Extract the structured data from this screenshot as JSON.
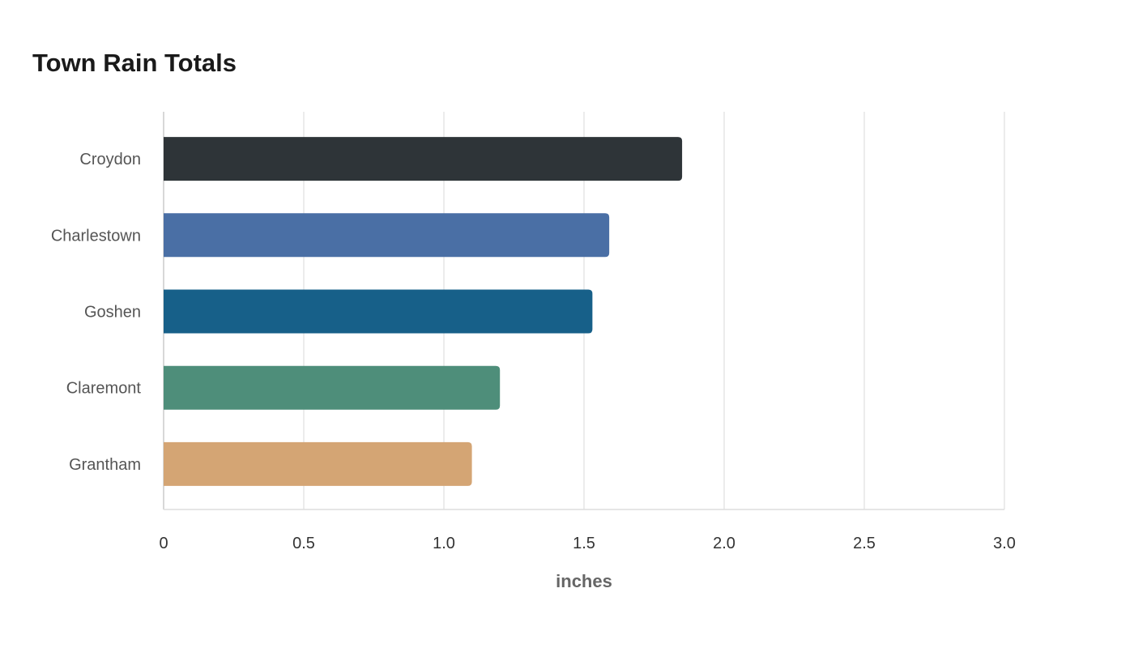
{
  "chart_data": {
    "type": "bar",
    "orientation": "horizontal",
    "title": "Town Rain Totals",
    "xlabel": "inches",
    "ylabel": "",
    "xlim": [
      0,
      3.0
    ],
    "x_ticks": [
      {
        "value": 0,
        "label": "0"
      },
      {
        "value": 0.5,
        "label": "0.5"
      },
      {
        "value": 1.0,
        "label": "1.0"
      },
      {
        "value": 1.5,
        "label": "1.5"
      },
      {
        "value": 2.0,
        "label": "2.0"
      },
      {
        "value": 2.5,
        "label": "2.5"
      },
      {
        "value": 3.0,
        "label": "3.0"
      }
    ],
    "categories": [
      "Croydon",
      "Charlestown",
      "Goshen",
      "Claremont",
      "Grantham"
    ],
    "values": [
      1.85,
      1.59,
      1.53,
      1.2,
      1.1
    ],
    "colors": [
      "#2e3438",
      "#4a6fa5",
      "#176089",
      "#4e8e7a",
      "#d4a574"
    ],
    "grid": true,
    "legend": "none"
  }
}
